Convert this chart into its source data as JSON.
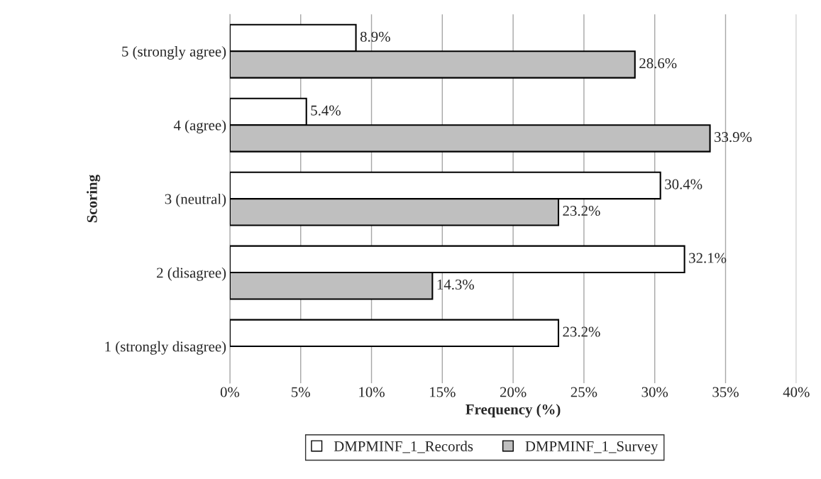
{
  "chart_data": {
    "type": "bar",
    "orientation": "horizontal",
    "xlabel": "Frequency (%)",
    "ylabel": "Scoring",
    "categories": [
      "5 (strongly agree)",
      "4 (agree)",
      "3 (neutral)",
      "2 (disagree)",
      "1 (strongly disagree)"
    ],
    "series": [
      {
        "name": "DMPMINF_1_Records",
        "color": "#ffffff",
        "values": [
          8.9,
          5.4,
          30.4,
          32.1,
          23.2
        ],
        "value_labels": [
          "8.9%",
          "5.4%",
          "30.4%",
          "32.1%",
          "23.2%"
        ]
      },
      {
        "name": "DMPMINF_1_Survey",
        "color": "#bfbfbf",
        "values": [
          28.6,
          33.9,
          23.2,
          14.3,
          null
        ],
        "value_labels": [
          "28.6%",
          "33.9%",
          "23.2%",
          "14.3%",
          null
        ]
      }
    ],
    "xlim": [
      0,
      40
    ],
    "xticks": [
      {
        "value": 0,
        "label": "0%"
      },
      {
        "value": 5,
        "label": "5%"
      },
      {
        "value": 10,
        "label": "10%"
      },
      {
        "value": 15,
        "label": "15%"
      },
      {
        "value": 20,
        "label": "20%"
      },
      {
        "value": 25,
        "label": "25%"
      },
      {
        "value": 30,
        "label": "30%"
      },
      {
        "value": 35,
        "label": "35%"
      },
      {
        "value": 40,
        "label": "40%"
      }
    ],
    "grid": "x",
    "legend": "bottom"
  }
}
